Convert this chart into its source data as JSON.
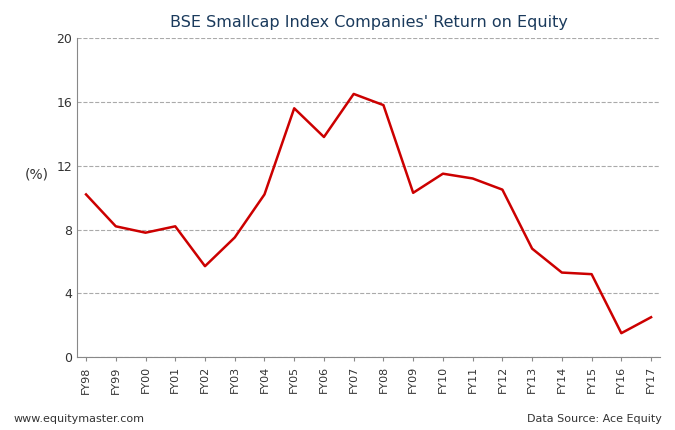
{
  "title": "BSE Smallcap Index Companies' Return on Equity",
  "ylabel": "(%)",
  "categories": [
    "FY98",
    "FY99",
    "FY00",
    "FY01",
    "FY02",
    "FY03",
    "FY04",
    "FY05",
    "FY06",
    "FY07",
    "FY08",
    "FY09",
    "FY10",
    "FY11",
    "FY12",
    "FY13",
    "FY14",
    "FY15",
    "FY16",
    "FY17"
  ],
  "values": [
    10.2,
    8.2,
    7.8,
    8.2,
    5.7,
    7.5,
    10.2,
    15.6,
    13.8,
    16.5,
    15.8,
    10.3,
    11.5,
    11.2,
    10.5,
    6.8,
    5.3,
    5.2,
    1.5,
    2.5
  ],
  "line_color": "#cc0000",
  "line_width": 1.8,
  "ylim": [
    0,
    20
  ],
  "yticks": [
    0,
    4,
    8,
    12,
    16,
    20
  ],
  "grid_color": "#aaaaaa",
  "grid_linestyle": "--",
  "background_color": "#ffffff",
  "footer_left": "www.equitymaster.com",
  "footer_right": "Data Source: Ace Equity",
  "title_color": "#1a3a5c",
  "tick_label_color": "#333333",
  "footer_color": "#333333",
  "spine_color": "#888888"
}
